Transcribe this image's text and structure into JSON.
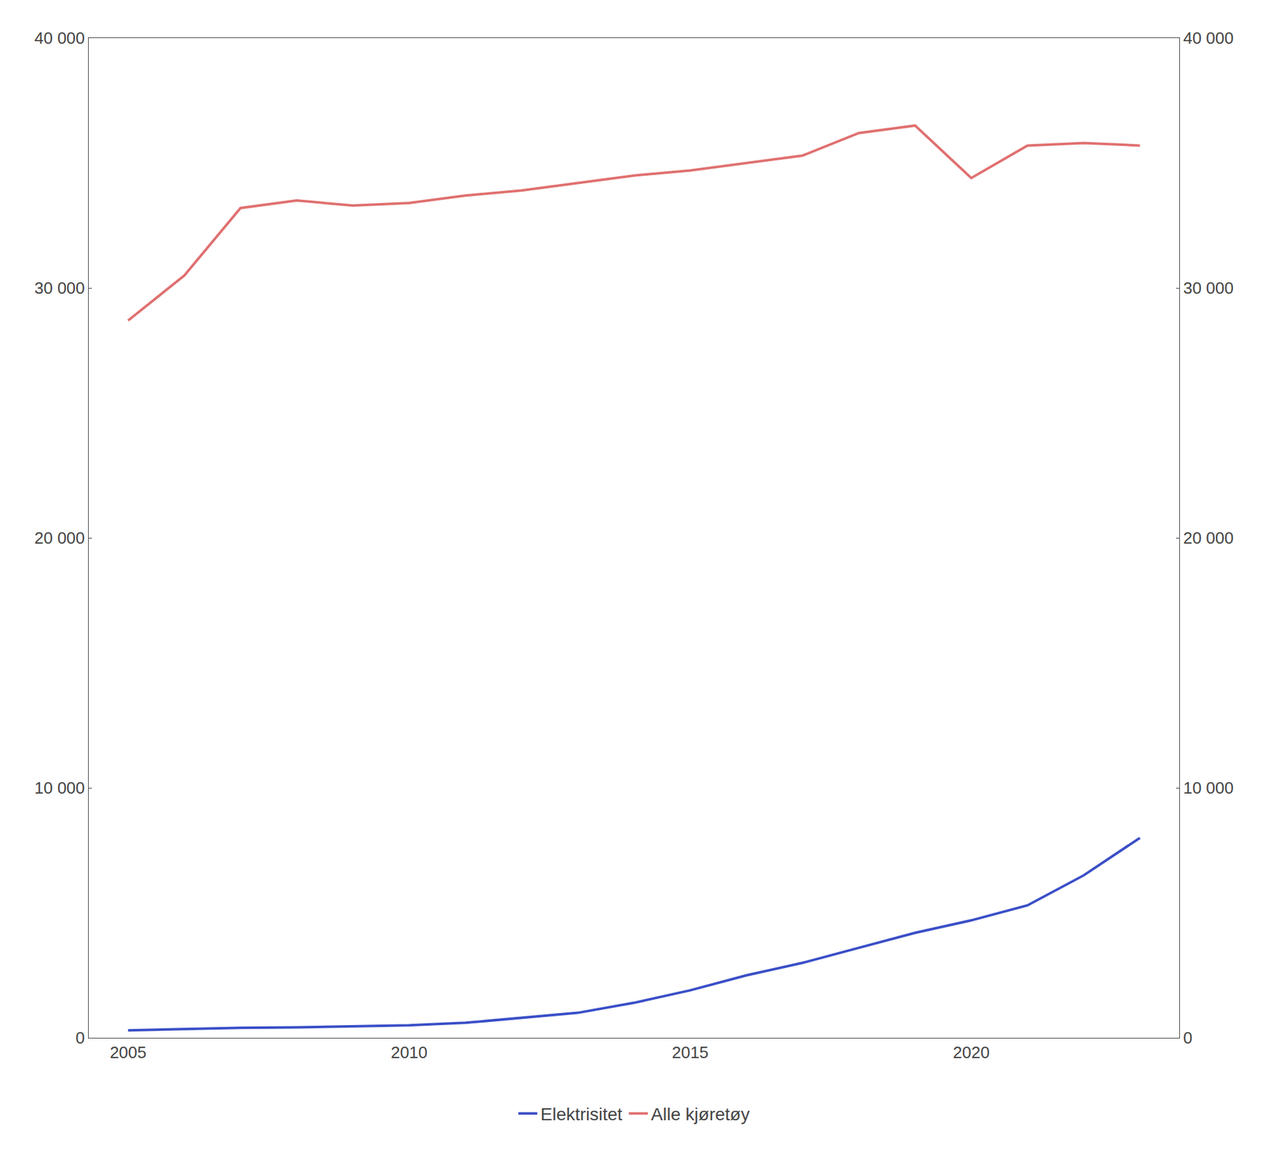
{
  "chart_data": {
    "type": "line",
    "x": [
      2005,
      2006,
      2007,
      2008,
      2009,
      2010,
      2011,
      2012,
      2013,
      2014,
      2015,
      2016,
      2017,
      2018,
      2019,
      2020,
      2021,
      2022,
      2023
    ],
    "series": [
      {
        "name": "Elektrisitet",
        "color": "#3a4fc7",
        "values": [
          300,
          350,
          400,
          420,
          450,
          500,
          600,
          800,
          1000,
          1400,
          1900,
          2500,
          3000,
          3600,
          4200,
          4700,
          5300,
          6500,
          8000
        ]
      },
      {
        "name": "Alle kjøretøy",
        "color": "#e07070",
        "values": [
          28700,
          30500,
          33200,
          33500,
          33300,
          33400,
          33700,
          33900,
          34200,
          34500,
          34700,
          35000,
          35300,
          36200,
          36500,
          34400,
          35700,
          35800,
          35700
        ]
      }
    ],
    "xlim": [
      2004.3,
      2023.7
    ],
    "xticks": [
      2005,
      2010,
      2015,
      2020
    ],
    "ylim": [
      0,
      40000
    ],
    "yticks": [
      0,
      {
        "value": 10000,
        "label": "10 000"
      },
      {
        "value": 20000,
        "label": "20 000"
      },
      {
        "value": 30000,
        "label": "30 000"
      },
      {
        "value": 40000,
        "label": "40 000"
      }
    ],
    "y2lim": [
      0,
      40000
    ],
    "y2ticks": [
      0,
      {
        "value": 10000,
        "label": "10 000"
      },
      {
        "value": 20000,
        "label": "20 000"
      },
      {
        "value": 30000,
        "label": "30 000"
      },
      {
        "value": 40000,
        "label": "40 000"
      }
    ],
    "grid": false,
    "legend": "bottom"
  }
}
